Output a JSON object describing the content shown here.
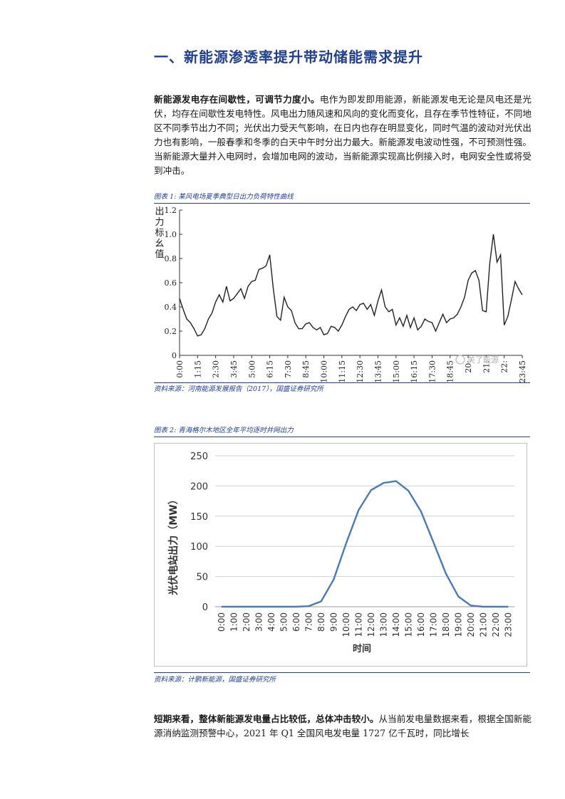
{
  "heading": "一、新能源渗透率提升带动储能需求提升",
  "para1": {
    "bold": "新能源发电存在间歇性，可调节力度小。",
    "text": "电作为即发即用能源，新能源发电无论是风电还是光伏，均存在间歇性发电特性。风电出力随风速和风向的变化而变化，且存在季节性特征，不同地区不同季节出力不同；光伏出力受天气影响，在日内也存在明显变化，同时气温的波动对光伏出力也有影响，一般春季和冬季的白天中午时分出力最大。新能源发电波动性强，不可预测性强。当新能源大量并入电网时，会增加电网的波动，当新能源实现高比例接入时，电网安全性或将受到冲击。"
  },
  "figure1": {
    "caption": "图表 1:  某风电场夏季典型日出力负荷特性曲线",
    "source": "资料来源：河南能源发展报告（2017），国盛证券研究所",
    "watermark": "关了能源"
  },
  "figure2": {
    "caption": "图表 2:  青海格尔木地区全年平均逐时并网出力",
    "source": "资料来源：计鹏新能源，国盛证券研究所"
  },
  "para2": {
    "bold": "短期来看，整体新能源发电量占比较低，总体冲击较小。",
    "text": "从当前发电量数据来看，根据全国新能源消纳监测预警中心，2021 年 Q1 全国风电发电量 1727 亿千瓦时，同比增长"
  },
  "chart_data": [
    {
      "type": "line",
      "title": "",
      "ylabel": "出力标幺值",
      "xlabel": "",
      "ylim": [
        0,
        1.2
      ],
      "yticks": [
        "0",
        "0.2",
        "0.4",
        "0.6",
        "0.8",
        "1.0",
        "1.2"
      ],
      "xticks": [
        "0:00",
        "1:15",
        "2:30",
        "3:45",
        "5:00",
        "6:15",
        "7:30",
        "8:45",
        "10:00",
        "11:15",
        "12:30",
        "13:45",
        "15:00",
        "16:15",
        "17:30",
        "18:45",
        "20:00",
        "21:15",
        "22:30",
        "23:45"
      ],
      "xtick_labels_shown": [
        "0:00",
        "1:15",
        "2:30",
        "3:45",
        "5:00",
        "6:15",
        "7:30",
        "8:45",
        "10:00",
        "11:15",
        "12:30",
        "13:45",
        "15:00",
        "16:15",
        "17:30",
        "18:45",
        "20:",
        "21:",
        "22:",
        "23:45"
      ],
      "xrange_hours": [
        0,
        23.75
      ],
      "grid": false,
      "series": [
        {
          "hours": [
            0,
            0.25,
            0.5,
            0.75,
            1,
            1.25,
            1.5,
            1.75,
            2,
            2.25,
            2.5,
            2.75,
            3,
            3.25,
            3.5,
            3.75,
            4,
            4.25,
            4.5,
            4.75,
            5,
            5.25,
            5.5,
            5.75,
            6,
            6.25,
            6.5,
            6.75,
            7,
            7.25,
            7.5,
            7.75,
            8,
            8.25,
            8.5,
            8.75,
            9,
            9.25,
            9.5,
            9.75,
            10,
            10.25,
            10.5,
            10.75,
            11,
            11.25,
            11.5,
            11.75,
            12,
            12.25,
            12.5,
            12.75,
            13,
            13.25,
            13.5,
            13.75,
            14,
            14.25,
            14.5,
            14.75,
            15,
            15.25,
            15.5,
            15.75,
            16,
            16.25,
            16.5,
            16.75,
            17,
            17.25,
            17.5,
            17.75,
            18,
            18.25,
            18.5,
            18.75,
            19,
            19.25,
            19.5,
            19.75,
            20,
            20.25,
            20.5,
            20.75,
            21,
            21.25,
            21.5,
            21.75,
            22,
            22.25,
            22.5,
            22.75,
            23,
            23.25,
            23.5,
            23.75
          ],
          "values": [
            0.47,
            0.38,
            0.3,
            0.27,
            0.22,
            0.16,
            0.17,
            0.22,
            0.3,
            0.35,
            0.44,
            0.5,
            0.44,
            0.57,
            0.45,
            0.47,
            0.51,
            0.55,
            0.47,
            0.57,
            0.61,
            0.62,
            0.71,
            0.72,
            0.74,
            0.83,
            0.55,
            0.32,
            0.29,
            0.48,
            0.4,
            0.37,
            0.27,
            0.22,
            0.22,
            0.26,
            0.27,
            0.23,
            0.21,
            0.23,
            0.17,
            0.18,
            0.24,
            0.23,
            0.2,
            0.25,
            0.32,
            0.38,
            0.4,
            0.37,
            0.42,
            0.43,
            0.38,
            0.42,
            0.33,
            0.45,
            0.54,
            0.4,
            0.36,
            0.38,
            0.25,
            0.31,
            0.24,
            0.33,
            0.23,
            0.31,
            0.21,
            0.24,
            0.3,
            0.28,
            0.27,
            0.2,
            0.27,
            0.34,
            0.27,
            0.3,
            0.31,
            0.34,
            0.4,
            0.48,
            0.62,
            0.68,
            0.7,
            0.62,
            0.37,
            0.36,
            0.76,
            1.0,
            0.77,
            0.83,
            0.25,
            0.32,
            0.46,
            0.61,
            0.55,
            0.5
          ]
        }
      ]
    },
    {
      "type": "line",
      "title": "",
      "ylabel": "光伏电站出力（MW）",
      "xlabel": "时间",
      "ylim": [
        0,
        250
      ],
      "yticks": [
        "0",
        "50",
        "100",
        "150",
        "200",
        "250"
      ],
      "grid": true,
      "categories": [
        "0:00",
        "1:00",
        "2:00",
        "3:00",
        "4:00",
        "5:00",
        "6:00",
        "7:00",
        "8:00",
        "9:00",
        "10:00",
        "11:00",
        "12:00",
        "13:00",
        "14:00",
        "15:00",
        "16:00",
        "17:00",
        "18:00",
        "19:00",
        "20:00",
        "21:00",
        "22:00",
        "23:00"
      ],
      "series": [
        {
          "values": [
            0,
            0,
            0,
            0,
            0,
            0,
            0,
            1,
            9,
            45,
            105,
            160,
            193,
            205,
            208,
            192,
            158,
            107,
            55,
            17,
            2,
            0,
            0,
            0
          ]
        }
      ]
    }
  ]
}
